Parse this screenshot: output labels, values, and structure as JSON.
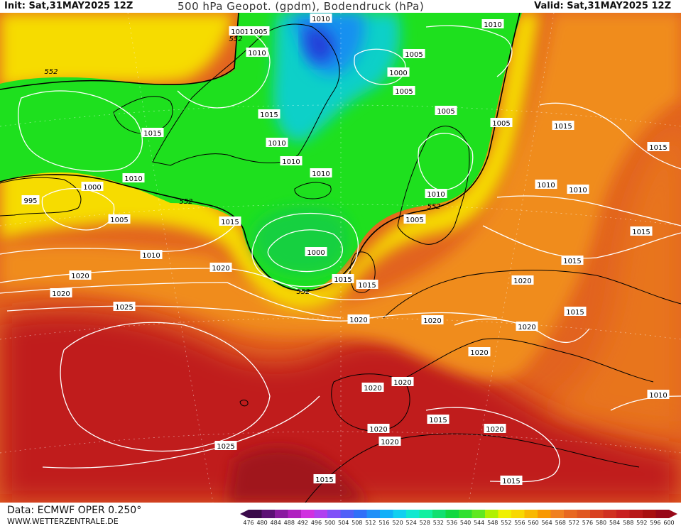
{
  "header": {
    "init": "Init: Sat,31MAY2025 12Z",
    "title": "500 hPa Geopot. (gpdm), Bodendruck (hPa)",
    "valid": "Valid: Sat,31MAY2025 12Z"
  },
  "footer": {
    "data_source": "Data: ECMWF OPER 0.250°",
    "website": "WWW.WETTERZENTRALE.DE"
  },
  "colors": {
    "deep_trough": "#1c3fd0",
    "low_geopot": "#00c8ff",
    "mid_geopot": "#19e019",
    "threshold_yellow": "#f5e400",
    "warm_orange": "#f08a1a",
    "ridge_red": "#c01818",
    "isobar": "#ffffff",
    "coastline": "#000000"
  },
  "colorbar": {
    "ticks": [
      "476",
      "480",
      "484",
      "488",
      "492",
      "496",
      "500",
      "504",
      "508",
      "512",
      "516",
      "520",
      "524",
      "528",
      "532",
      "536",
      "540",
      "544",
      "548",
      "552",
      "556",
      "560",
      "564",
      "568",
      "572",
      "576",
      "580",
      "584",
      "588",
      "592",
      "596",
      "600"
    ],
    "colors": [
      "#3a0a4a",
      "#5c1075",
      "#8a1aa0",
      "#b020c0",
      "#d030e0",
      "#b040f0",
      "#8050f8",
      "#5060f8",
      "#3070f8",
      "#2090f8",
      "#10b0f8",
      "#10d0f0",
      "#10e8d0",
      "#10f0a0",
      "#10e070",
      "#10d840",
      "#30e030",
      "#60e820",
      "#b0f000",
      "#f0f000",
      "#f8d800",
      "#f8b800",
      "#f89800",
      "#f08020",
      "#e86820",
      "#e05820",
      "#d84020",
      "#d03020",
      "#c82020",
      "#b81818",
      "#a81010",
      "#980818"
    ]
  },
  "chart_data": {
    "type": "map",
    "contour_field": "500 hPa geopotential (gpdm)",
    "highlighted_geopot_contour": [
      {
        "value": "552"
      },
      {
        "value": "552"
      },
      {
        "value": "552"
      },
      {
        "value": "552"
      },
      {
        "value": "552"
      }
    ],
    "isobar_labels": [
      "1010",
      "1001",
      "1005",
      "1010",
      "1005",
      "1000",
      "1005",
      "1015",
      "1010",
      "1005",
      "1015",
      "1010",
      "1010",
      "1010",
      "1005",
      "1010",
      "1000",
      "995",
      "1005",
      "1010",
      "1005",
      "1000",
      "1015",
      "1015",
      "1015",
      "1020",
      "1020",
      "1010",
      "1015",
      "1025",
      "1020",
      "1020",
      "1020",
      "1020",
      "1015",
      "1015",
      "1010",
      "1010",
      "1015",
      "1015",
      "1020",
      "1020",
      "1020",
      "1020",
      "1020",
      "1020",
      "1015",
      "1025",
      "1020",
      "1010",
      "1015",
      "1015"
    ]
  }
}
